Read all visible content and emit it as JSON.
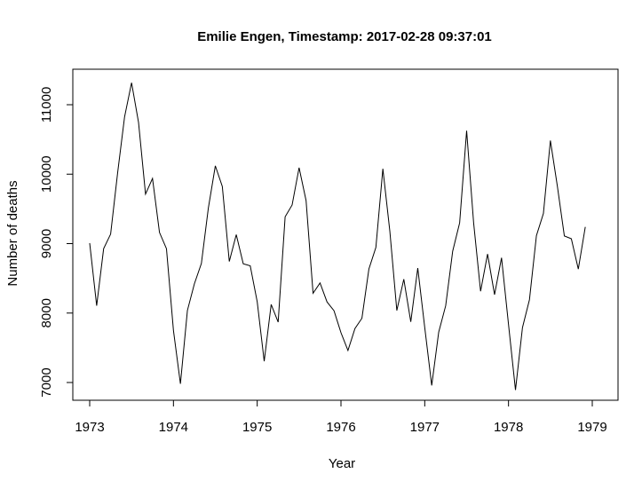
{
  "chart_data": {
    "type": "line",
    "title": "Emilie Engen, Timestamp: 2017-02-28 09:37:01",
    "xlabel": "Year",
    "ylabel": "Number of deaths",
    "xlim": [
      1973,
      1979
    ],
    "ylim": [
      7000,
      11000
    ],
    "x_ticks": [
      "1973",
      "1974",
      "1975",
      "1976",
      "1977",
      "1978",
      "1979"
    ],
    "y_ticks": [
      "7000",
      "8000",
      "9000",
      "10000",
      "11000"
    ],
    "grid": false,
    "series": [
      {
        "x_start": 1973,
        "x_step": 0.08333333,
        "values": [
          9007,
          8106,
          8928,
          9137,
          10017,
          10826,
          11317,
          10744,
          9713,
          9938,
          9161,
          8927,
          7750,
          6981,
          8038,
          8422,
          8714,
          9512,
          10120,
          9823,
          8743,
          9129,
          8710,
          8680,
          8162,
          7306,
          8124,
          7870,
          9387,
          9556,
          10093,
          9620,
          8285,
          8433,
          8160,
          8034,
          7717,
          7461,
          7776,
          7925,
          8634,
          8945,
          10078,
          9179,
          8037,
          8488,
          7874,
          8647,
          7792,
          6957,
          7726,
          8106,
          8890,
          9299,
          10625,
          9302,
          8314,
          8850,
          8265,
          8796,
          7836,
          6892,
          7791,
          8192,
          9115,
          9434,
          10484,
          9827,
          9110,
          9070,
          8633,
          9240
        ]
      }
    ]
  }
}
